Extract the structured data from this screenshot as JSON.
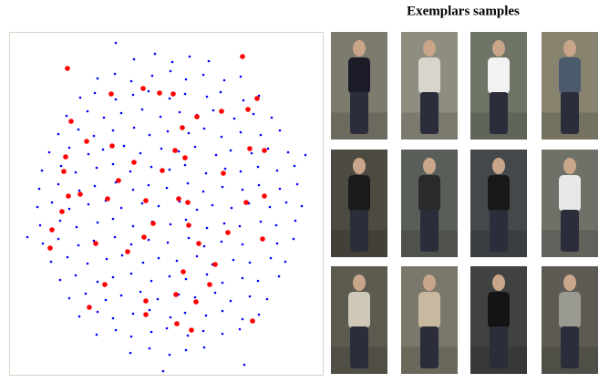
{
  "chart_data": {
    "type": "scatter",
    "series": [
      {
        "color": "#0000ff",
        "x": [
          -38,
          -15,
          4,
          23,
          44,
          -78,
          -59,
          -41,
          -18,
          2,
          19,
          38,
          61,
          79,
          -97,
          -81,
          -58,
          -39,
          -22,
          1,
          18,
          42,
          57,
          82,
          99,
          -112,
          -89,
          -71,
          -52,
          -29,
          -9,
          12,
          31,
          49,
          72,
          93,
          113,
          -121,
          -99,
          -82,
          -61,
          -38,
          -21,
          -1,
          22,
          39,
          58,
          79,
          101,
          122,
          -131,
          -109,
          -88,
          -72,
          -49,
          -31,
          -8,
          11,
          29,
          52,
          68,
          91,
          109,
          131,
          -139,
          -118,
          -102,
          -79,
          -61,
          -42,
          -19,
          1,
          18,
          41,
          62,
          79,
          98,
          119,
          138,
          -142,
          -121,
          -98,
          -81,
          -58,
          -39,
          -22,
          -2,
          21,
          38,
          59,
          81,
          99,
          122,
          141,
          -144,
          -128,
          -109,
          -88,
          -69,
          -52,
          -29,
          -11,
          12,
          31,
          48,
          69,
          88,
          111,
          129,
          146,
          -141,
          -119,
          -101,
          -78,
          -61,
          -39,
          -18,
          2,
          19,
          42,
          61,
          78,
          101,
          118,
          139,
          -138,
          -121,
          -99,
          -82,
          -59,
          -41,
          -22,
          -1,
          22,
          39,
          58,
          81,
          102,
          119,
          137,
          -129,
          -111,
          -89,
          -68,
          -51,
          -28,
          -11,
          9,
          31,
          48,
          71,
          89,
          112,
          128,
          -119,
          -102,
          -78,
          -61,
          -41,
          -19,
          1,
          19,
          42,
          59,
          81,
          98,
          121,
          -109,
          -91,
          -69,
          -52,
          -31,
          -12,
          11,
          29,
          51,
          68,
          89,
          108,
          -98,
          -78,
          -61,
          -39,
          -21,
          2,
          18,
          41,
          59,
          81,
          99,
          -79,
          -58,
          -41,
          -19,
          -2,
          21,
          38,
          59,
          78,
          -42,
          -21,
          1,
          19,
          39,
          -58,
          83,
          -155,
          150,
          -6
        ],
        "y": [
          160,
          166,
          157,
          163,
          158,
          139,
          144,
          136,
          142,
          147,
          138,
          143,
          137,
          141,
          118,
          123,
          116,
          121,
          125,
          117,
          122,
          119,
          124,
          115,
          120,
          98,
          103,
          96,
          101,
          105,
          97,
          102,
          99,
          104,
          95,
          100,
          96,
          78,
          83,
          76,
          82,
          85,
          77,
          81,
          79,
          84,
          75,
          80,
          77,
          82,
          58,
          63,
          56,
          61,
          65,
          57,
          62,
          59,
          64,
          55,
          60,
          57,
          62,
          58,
          38,
          43,
          36,
          41,
          45,
          37,
          42,
          39,
          44,
          35,
          40,
          37,
          42,
          38,
          43,
          18,
          23,
          16,
          21,
          25,
          17,
          22,
          19,
          24,
          15,
          20,
          17,
          22,
          18,
          23,
          -2,
          3,
          -4,
          1,
          5,
          -3,
          2,
          -1,
          4,
          -5,
          0,
          -3,
          2,
          -2,
          3,
          -1,
          -22,
          -17,
          -24,
          -19,
          -15,
          -23,
          -18,
          -21,
          -16,
          -25,
          -20,
          -23,
          -18,
          -22,
          -17,
          -42,
          -37,
          -44,
          -39,
          -35,
          -43,
          -38,
          -41,
          -36,
          -45,
          -40,
          -43,
          -38,
          -42,
          -37,
          -62,
          -57,
          -64,
          -59,
          -55,
          -63,
          -58,
          -61,
          -56,
          -65,
          -60,
          -63,
          -58,
          -62,
          -82,
          -77,
          -84,
          -79,
          -75,
          -83,
          -78,
          -81,
          -76,
          -85,
          -80,
          -83,
          -78,
          -102,
          -97,
          -104,
          -99,
          -95,
          -103,
          -98,
          -101,
          -96,
          -105,
          -100,
          -103,
          -122,
          -117,
          -124,
          -119,
          -115,
          -123,
          -118,
          -121,
          -116,
          -125,
          -120,
          -142,
          -137,
          -144,
          -139,
          -135,
          -143,
          -138,
          -141,
          -136,
          -162,
          -157,
          -164,
          -159,
          -156,
          178,
          -175,
          -35,
          55,
          -182
        ]
      },
      {
        "color": "#ff0000",
        "x": [
          -111,
          81,
          -63,
          -28,
          -10,
          5,
          97,
          58,
          87,
          -107,
          15,
          31,
          -90,
          -62,
          89,
          105,
          -113,
          7,
          -38,
          18,
          -7,
          60,
          -55,
          -115,
          105,
          85,
          -97,
          -110,
          11,
          21,
          -25,
          -67,
          -17,
          22,
          -117,
          -128,
          -27,
          33,
          -80,
          -130,
          103,
          -45,
          16,
          45,
          -70,
          -25,
          8,
          30,
          -87,
          -25,
          9,
          92,
          25,
          51,
          65
        ],
        "y": [
          150,
          163,
          122,
          128,
          123,
          122,
          117,
          103,
          105,
          92,
          85,
          97,
          70,
          65,
          62,
          60,
          53,
          60,
          47,
          52,
          38,
          35,
          27,
          37,
          10,
          3,
          12,
          10,
          7,
          3,
          5,
          7,
          -20,
          -22,
          -7,
          -27,
          -35,
          -42,
          -42,
          -47,
          -37,
          -51,
          -73,
          -87,
          -87,
          -105,
          -98,
          -106,
          -112,
          -120,
          -130,
          -127,
          -137,
          -65,
          -30
        ]
      }
    ],
    "xlim": [
      -175,
      170
    ],
    "ylim": [
      -187,
      190
    ]
  },
  "exemplars": {
    "title": "Exemplars samples"
  }
}
